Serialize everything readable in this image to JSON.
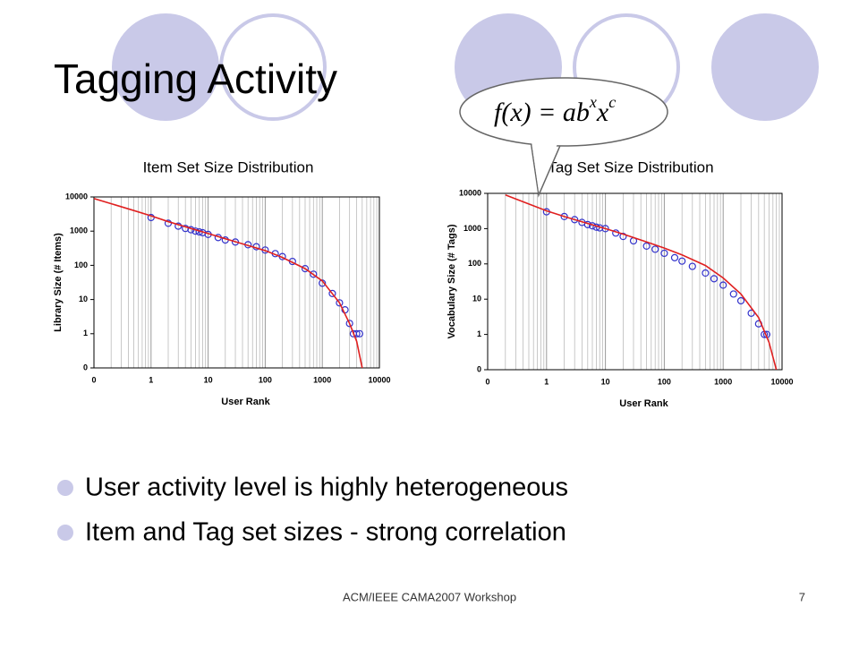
{
  "slide": {
    "title": "Tagging Activity",
    "formula": [
      "f(x) = ab",
      "x",
      "x",
      "c"
    ],
    "bullets": [
      "User activity level is highly heterogeneous",
      "Item and Tag set sizes - strong correlation"
    ],
    "footer": "ACM/IEEE CAMA2007 Workshop",
    "page_number": "7"
  },
  "chart_data": [
    {
      "type": "scatter",
      "title": "Item Set Size Distribution",
      "xlabel": "User Rank",
      "ylabel": "Library Size (# Items)",
      "log_x": true,
      "log_y": true,
      "grid": true,
      "xlim": [
        0.1,
        10000
      ],
      "ylim": [
        0.1,
        10000
      ],
      "xticks": [
        {
          "value": 0.1,
          "label": "0"
        },
        1,
        10,
        100,
        1000,
        10000
      ],
      "yticks": [
        {
          "value": 0.1,
          "label": "0"
        },
        1,
        10,
        100,
        1000,
        10000
      ],
      "series": [
        {
          "style": "points",
          "color": "#3333cc",
          "x": [
            1,
            2,
            3,
            4,
            5,
            6,
            7,
            8,
            10,
            15,
            20,
            30,
            50,
            70,
            100,
            150,
            200,
            300,
            500,
            700,
            1000,
            1500,
            2000,
            2500,
            3000,
            3500,
            4000,
            4500
          ],
          "values": [
            2500,
            1700,
            1400,
            1200,
            1100,
            1000,
            950,
            900,
            800,
            650,
            550,
            480,
            400,
            350,
            280,
            220,
            180,
            130,
            80,
            55,
            30,
            15,
            8,
            5,
            2,
            1,
            1,
            1
          ]
        },
        {
          "style": "line",
          "color": "#e02020",
          "x": [
            0.1,
            0.5,
            1,
            2,
            5,
            10,
            20,
            50,
            100,
            200,
            500,
            1000,
            2000,
            3000,
            4000,
            5000
          ],
          "values": [
            9000,
            4000,
            2800,
            1900,
            1200,
            850,
            600,
            380,
            270,
            170,
            80,
            35,
            8,
            2,
            0.6,
            0.1
          ]
        }
      ]
    },
    {
      "type": "scatter",
      "title": "Tag Set Size Distribution",
      "xlabel": "User Rank",
      "ylabel": "Vocabulary Size (# Tags)",
      "log_x": true,
      "log_y": true,
      "grid": true,
      "xlim": [
        0.1,
        10000
      ],
      "ylim": [
        0.1,
        10000
      ],
      "xticks": [
        {
          "value": 0.1,
          "label": "0"
        },
        1,
        10,
        100,
        1000,
        10000
      ],
      "yticks": [
        {
          "value": 0.1,
          "label": "0"
        },
        1,
        10,
        100,
        1000,
        10000
      ],
      "series": [
        {
          "style": "points",
          "color": "#3333cc",
          "x": [
            1,
            2,
            3,
            4,
            5,
            6,
            7,
            8,
            10,
            15,
            20,
            30,
            50,
            70,
            100,
            150,
            200,
            300,
            500,
            700,
            1000,
            1500,
            2000,
            3000,
            4000,
            5000,
            5500
          ],
          "values": [
            3000,
            2200,
            1800,
            1500,
            1300,
            1200,
            1100,
            1050,
            1000,
            750,
            600,
            450,
            320,
            260,
            200,
            150,
            120,
            85,
            55,
            38,
            25,
            14,
            9,
            4,
            2,
            1,
            1
          ]
        },
        {
          "style": "line",
          "color": "#e02020",
          "x": [
            0.2,
            0.5,
            1,
            2,
            5,
            10,
            20,
            50,
            100,
            200,
            500,
            1000,
            2000,
            4000,
            6000,
            8000
          ],
          "values": [
            9000,
            5000,
            3200,
            2200,
            1400,
            1000,
            700,
            420,
            280,
            180,
            90,
            40,
            14,
            3,
            0.6,
            0.1
          ]
        }
      ]
    }
  ]
}
